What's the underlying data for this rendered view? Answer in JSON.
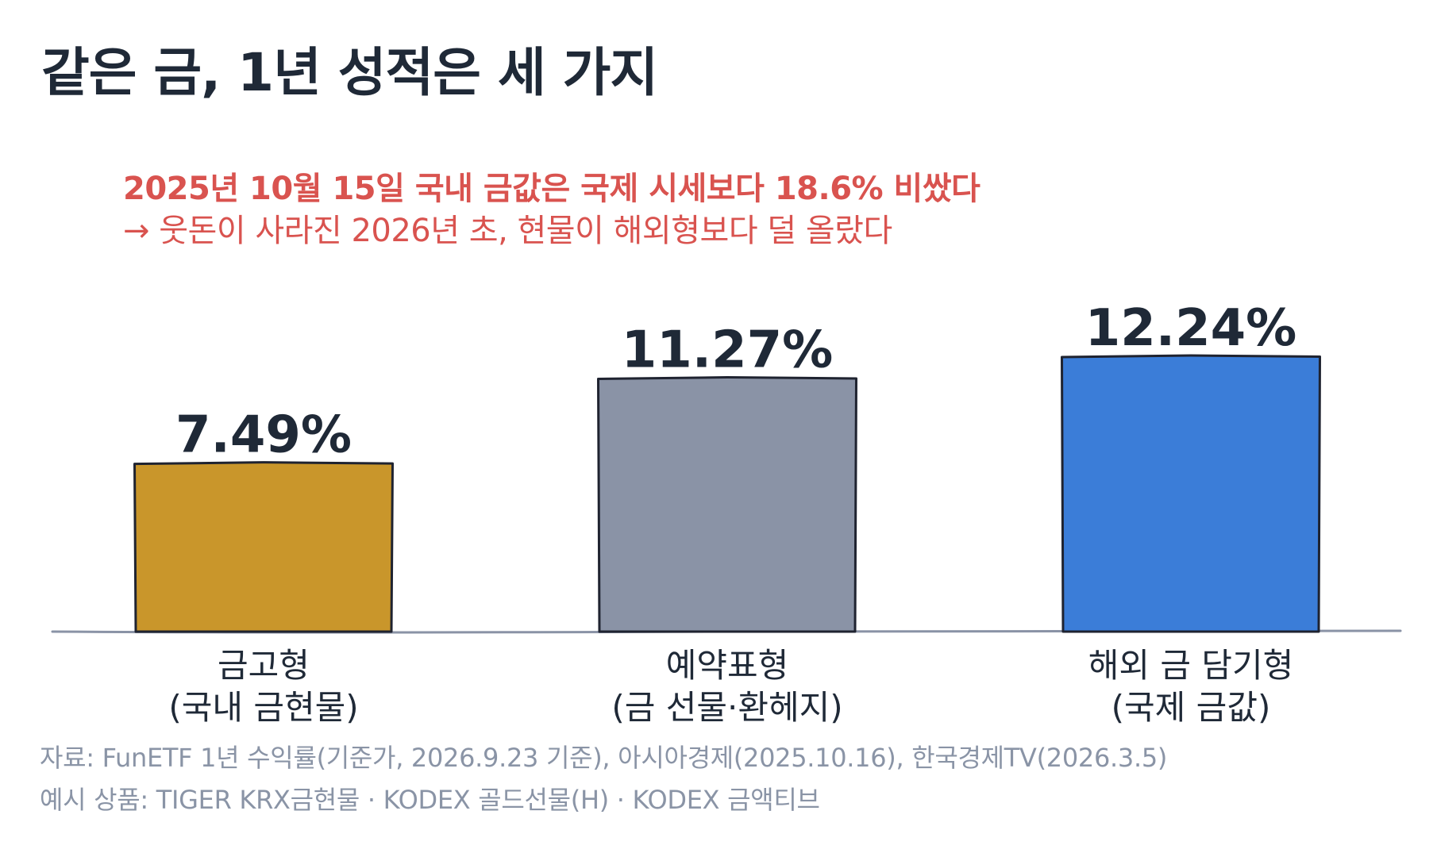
{
  "title": "같은 금, 1년 성적은 세 가지",
  "notes": {
    "line1": "2025년 10월 15일 국내 금값은 국제 시세보다 18.6% 비쌌다",
    "line2": "→ 웃돈이 사라진 2026년 초, 현물이 해외형보다 덜 올랐다"
  },
  "source": {
    "line1": "자료: FunETF 1년 수익률(기준가, 2026.9.23 기준), 아시아경제(2025.10.16), 한국경제TV(2026.3.5)",
    "line2": "예시 상품: TIGER KRX금현물 · KODEX 골드선물(H) · KODEX 금액티브"
  },
  "colors": {
    "bar_gold": "#c9962b",
    "bar_gray": "#8a93a6",
    "bar_blue": "#3b7dd8",
    "outline": "#1f2330",
    "baseline": "#8a93a6",
    "accent_red": "#d9534f"
  },
  "chart_data": {
    "type": "bar",
    "categories": [
      [
        "금고형",
        "(국내 금현물)"
      ],
      [
        "예약표형",
        "(금 선물·환헤지)"
      ],
      [
        "해외 금 담기형",
        "(국제 금값)"
      ]
    ],
    "values": [
      7.49,
      11.27,
      12.24
    ],
    "value_labels": [
      "7.49%",
      "11.27%",
      "12.24%"
    ],
    "bar_colors": [
      "#c9962b",
      "#8a93a6",
      "#3b7dd8"
    ],
    "ylim": [
      0,
      12.24
    ],
    "grid": false,
    "legend": "none",
    "xlabel": "",
    "ylabel": ""
  }
}
